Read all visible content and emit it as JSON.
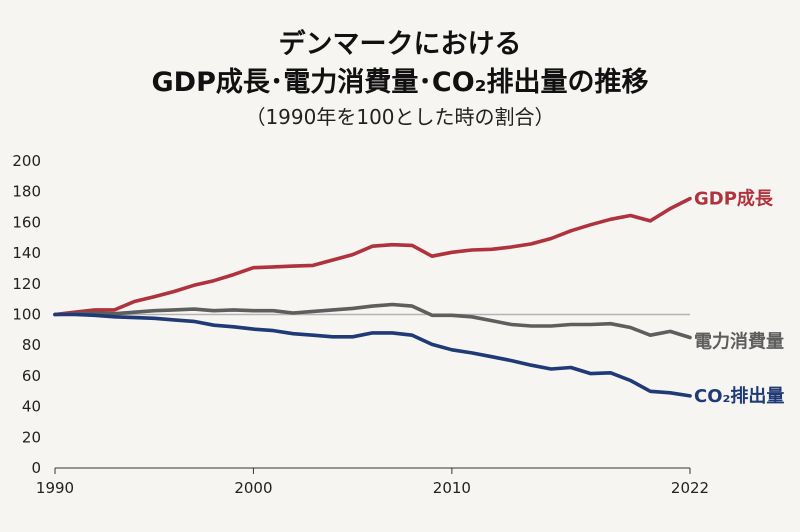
{
  "title_line1": "デンマークにおける",
  "title_line2": "GDP成長･電力消費量･CO₂排出量の推移",
  "subtitle": "（1990年を100とした時の割合）",
  "chart_data": {
    "type": "line",
    "title": "デンマークにおける GDP成長･電力消費量･CO₂排出量の推移",
    "subtitle": "（1990年を100とした時の割合）",
    "xlabel": "",
    "ylabel": "",
    "xlim": [
      1990,
      2022
    ],
    "ylim": [
      0,
      200
    ],
    "x_ticks": [
      1990,
      2000,
      2010,
      2022
    ],
    "y_ticks": [
      0,
      20,
      40,
      60,
      80,
      100,
      120,
      140,
      160,
      180,
      200
    ],
    "reference_line": 100,
    "x": [
      1990,
      1991,
      1992,
      1993,
      1994,
      1995,
      1996,
      1997,
      1998,
      1999,
      2000,
      2001,
      2002,
      2003,
      2004,
      2005,
      2006,
      2007,
      2008,
      2009,
      2010,
      2011,
      2012,
      2013,
      2014,
      2015,
      2016,
      2017,
      2018,
      2019,
      2020,
      2021,
      2022
    ],
    "series": [
      {
        "name": "GDP成長",
        "color": "#b0323d",
        "values": [
          100,
          101.5,
          103,
          103,
          108.5,
          111.5,
          115,
          119,
          122,
          126,
          130.5,
          131,
          131.5,
          132,
          135.5,
          139,
          144.5,
          145.5,
          145,
          138,
          140.5,
          142,
          142.5,
          144,
          146,
          149.5,
          154.5,
          158.5,
          162,
          164.5,
          161,
          169,
          175.5
        ]
      },
      {
        "name": "電力消費量",
        "color": "#5e5e5e",
        "values": [
          100,
          100.5,
          101,
          100.5,
          101.5,
          102.5,
          103,
          103.5,
          102.5,
          103,
          102.5,
          102.5,
          101,
          102,
          103,
          104,
          105.5,
          106.5,
          105.5,
          99.5,
          99.5,
          98.5,
          96,
          93.5,
          92.5,
          92.5,
          93.5,
          93.5,
          94,
          91.5,
          86.5,
          89,
          85
        ]
      },
      {
        "name": "CO₂排出量",
        "color": "#1f3a76",
        "values": [
          100,
          100,
          99.5,
          98.5,
          98,
          97.5,
          96.5,
          95.5,
          93,
          92,
          90.5,
          89.5,
          87.5,
          86.5,
          85.5,
          85.5,
          88,
          88,
          86.5,
          80.5,
          77,
          75,
          72.5,
          70,
          67,
          64.5,
          65.5,
          61.5,
          62,
          57,
          50,
          49,
          47
        ]
      }
    ]
  }
}
